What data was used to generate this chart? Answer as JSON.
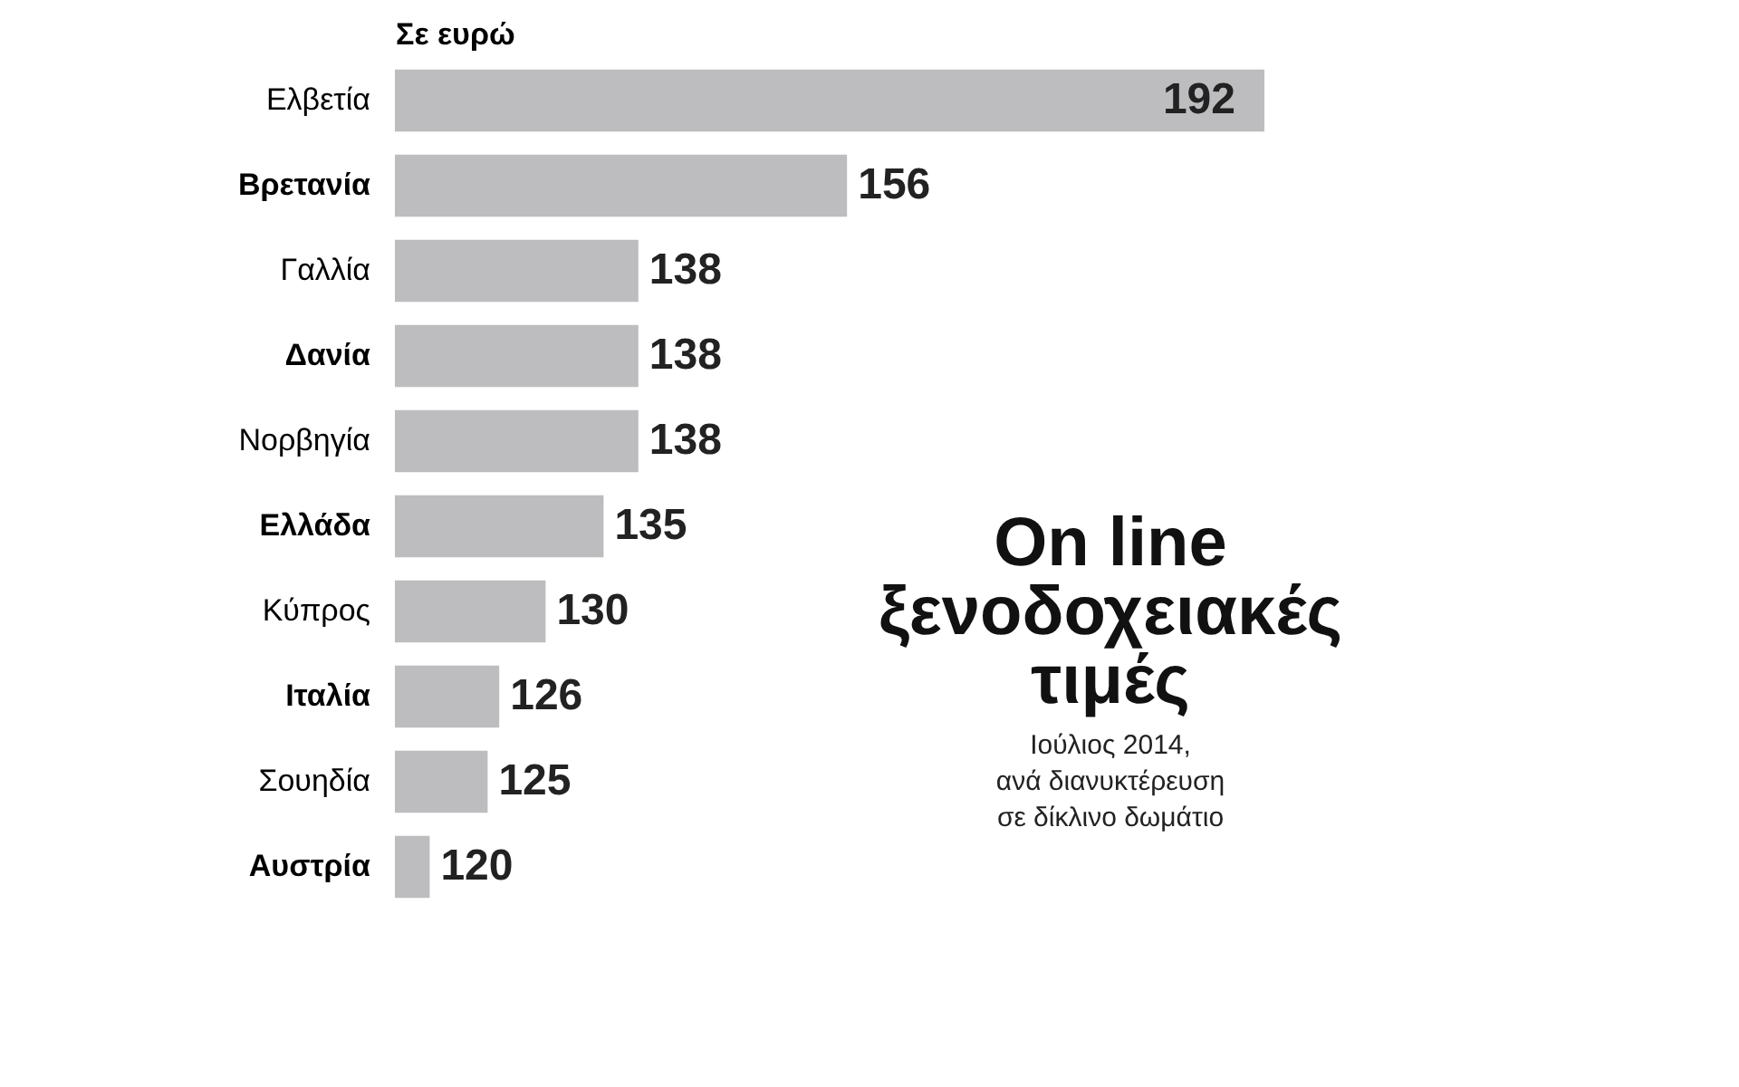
{
  "chart_data": {
    "type": "bar",
    "orientation": "horizontal",
    "title": "On line ξενοδοχειακές τιμές",
    "subtitle": "Ιούλιος 2014, ανά διανυκτέρευση σε δίκλινο δωμάτιο",
    "xlabel": "Σε ευρώ",
    "categories": [
      "Ελβετία",
      "Βρετανία",
      "Γαλλία",
      "Δανία",
      "Νορβηγία",
      "Ελλάδα",
      "Κύπρος",
      "Ιταλία",
      "Σουηδία",
      "Αυστρία"
    ],
    "values": [
      192,
      156,
      138,
      138,
      138,
      135,
      130,
      126,
      125,
      120
    ],
    "color": "#bdbdbf",
    "xlim": [
      117,
      192
    ],
    "data_labels": true,
    "tick_labels": "y",
    "grid": false
  }
}
